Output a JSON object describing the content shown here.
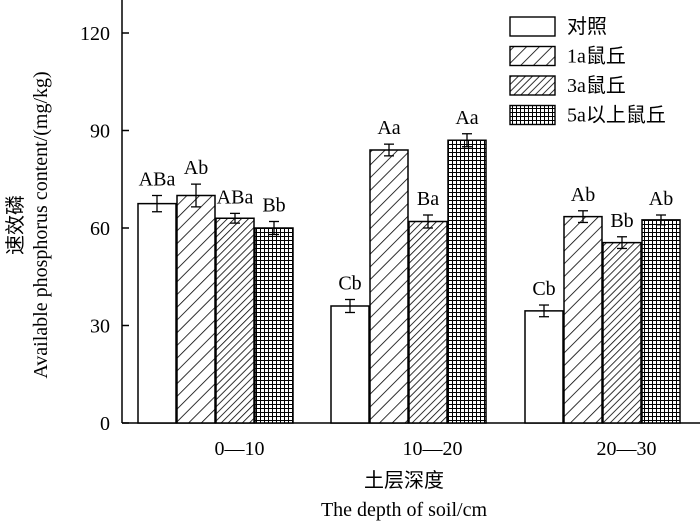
{
  "chart_data": {
    "type": "bar",
    "xlabel_cn": "土层深度",
    "xlabel_en": "The depth of soil/cm",
    "ylabel_cn": "速效磷",
    "ylabel_en": "Available phosphorus content/(mg/kg)",
    "categories": [
      "0—10",
      "10—20",
      "20—30"
    ],
    "ylim": [
      0,
      130
    ],
    "yticks": [
      0,
      30,
      60,
      90,
      120
    ],
    "grid": false,
    "legend_position": "top-right",
    "series": [
      {
        "name": "对照",
        "pattern": "blank",
        "values": [
          67.5,
          36,
          34.5
        ],
        "errors": [
          2.5,
          2,
          1.8
        ],
        "labels": [
          "ABa",
          "Cb",
          "Cb"
        ]
      },
      {
        "name": "1a鼠丘",
        "pattern": "diagonal",
        "values": [
          70,
          84,
          63.5
        ],
        "errors": [
          3.5,
          1.8,
          1.8
        ],
        "labels": [
          "Ab",
          "Aa",
          "Ab"
        ]
      },
      {
        "name": "3a鼠丘",
        "pattern": "dense-diagonal",
        "values": [
          63,
          62,
          55.5
        ],
        "errors": [
          1.5,
          2,
          1.8
        ],
        "labels": [
          "ABa",
          "Ba",
          "Bb"
        ]
      },
      {
        "name": "5a以上鼠丘",
        "pattern": "grid",
        "values": [
          60,
          87,
          62.5
        ],
        "errors": [
          2,
          2,
          1.5
        ],
        "labels": [
          "Bb",
          "Aa",
          "Ab"
        ]
      }
    ]
  }
}
